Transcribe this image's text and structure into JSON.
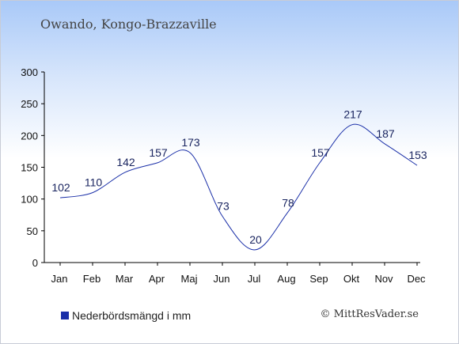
{
  "location_title": "Owando, Kongo-Brazzaville",
  "credit": "© MittResVader.se",
  "colors": {
    "series": "#1a2fa8",
    "axis": "#000000"
  },
  "chart_data": {
    "type": "line",
    "categories": [
      "Jan",
      "Feb",
      "Mar",
      "Apr",
      "Maj",
      "Jun",
      "Jul",
      "Aug",
      "Sep",
      "Okt",
      "Nov",
      "Dec"
    ],
    "series": [
      {
        "name": "Nederbördsmängd i mm",
        "values": [
          102,
          110,
          142,
          157,
          173,
          73,
          20,
          78,
          157,
          217,
          187,
          153
        ]
      }
    ],
    "yticks": [
      0,
      50,
      100,
      150,
      200,
      250,
      300
    ],
    "ylim": [
      0,
      300
    ],
    "xlabel": "",
    "ylabel": "",
    "legend": "bottom-left",
    "grid": false
  }
}
